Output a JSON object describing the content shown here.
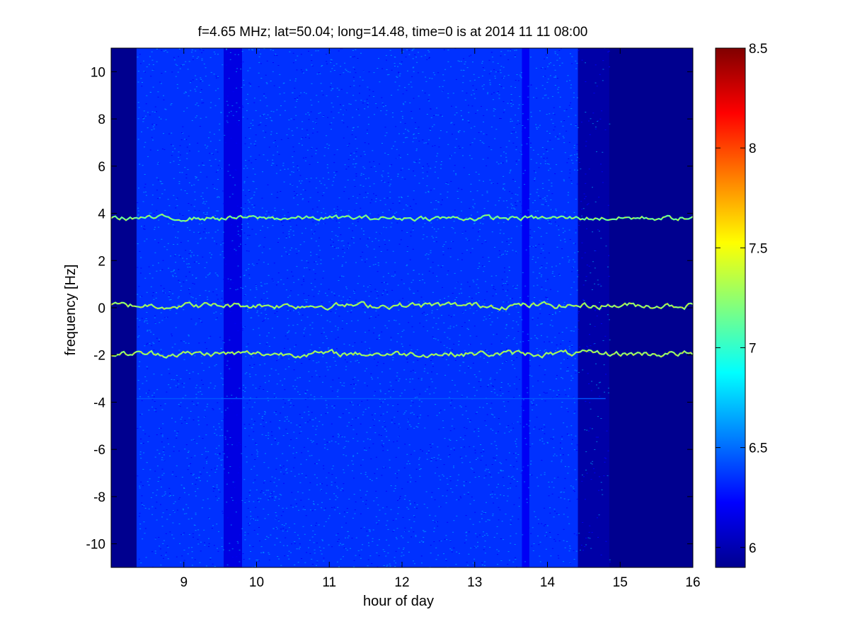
{
  "chart_data": {
    "type": "heatmap",
    "title": "f=4.65 MHz;  lat=50.04; long=14.48, time=0 is at 2014 11 11 08:00",
    "xlabel": "hour of day",
    "ylabel": "frequency [Hz]",
    "xlim": [
      8.0,
      16.0
    ],
    "ylim": [
      -11.0,
      11.0
    ],
    "xticks": [
      9,
      10,
      11,
      12,
      13,
      14,
      15,
      16
    ],
    "yticks": [
      -10,
      -8,
      -6,
      -4,
      -2,
      0,
      2,
      4,
      6,
      8,
      10
    ],
    "colormap": "jet",
    "clim": [
      5.9,
      8.5
    ],
    "colorbar_ticks": [
      6,
      6.5,
      7,
      7.5,
      8,
      8.5
    ],
    "colorbar_tick_labels": [
      "6",
      "6.5",
      "7",
      "7.5",
      "8",
      "8.5"
    ],
    "background_level": 5.95,
    "noise_level": 6.35,
    "noisy_intervals": [
      {
        "from": 8.35,
        "to": 9.55,
        "level": 6.35
      },
      {
        "from": 9.55,
        "to": 9.8,
        "level": 6.15
      },
      {
        "from": 9.8,
        "to": 13.65,
        "level": 6.35
      },
      {
        "from": 13.65,
        "to": 13.75,
        "level": 6.2
      },
      {
        "from": 13.75,
        "to": 14.42,
        "level": 6.35
      },
      {
        "from": 14.42,
        "to": 14.85,
        "level": 6.0
      }
    ],
    "traces": [
      {
        "center": 3.8,
        "from": 8.0,
        "to": 16.0,
        "peak": 7.6,
        "wiggle": 0.25
      },
      {
        "center": 0.1,
        "from": 8.0,
        "to": 16.0,
        "peak": 7.7,
        "wiggle": 0.3
      },
      {
        "center": -1.95,
        "from": 8.0,
        "to": 16.0,
        "peak": 7.7,
        "wiggle": 0.3
      },
      {
        "center": -3.85,
        "from": 8.35,
        "to": 14.8,
        "peak": 6.9,
        "wiggle": 0.0
      }
    ]
  }
}
